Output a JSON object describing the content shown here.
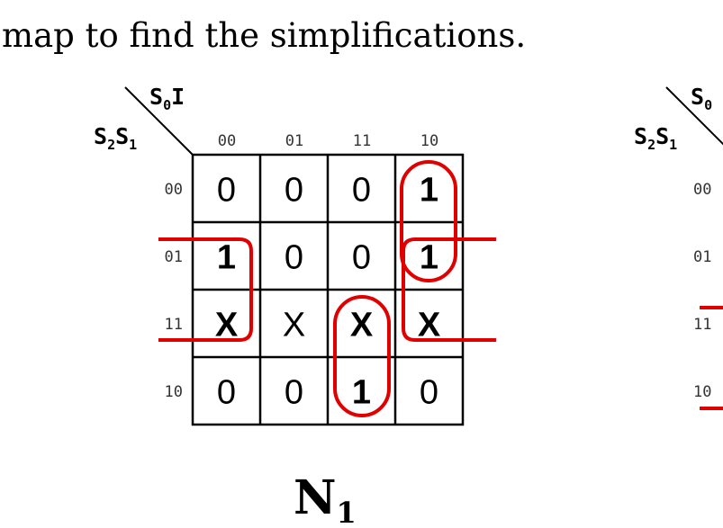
{
  "intro_text": "map to find the simplifications.",
  "kmap_left": {
    "title": "N",
    "title_sub": "1",
    "row_var": "S",
    "row_var_sub1": "2",
    "row_var2": "S",
    "row_var_sub2": "1",
    "col_var": "S",
    "col_var_sub": "0",
    "col_var2": "I",
    "col_labels": [
      "00",
      "01",
      "11",
      "10"
    ],
    "row_labels": [
      "00",
      "01",
      "11",
      "10"
    ],
    "cells": [
      [
        "0",
        "0",
        "0",
        "1"
      ],
      [
        "1",
        "0",
        "0",
        "1"
      ],
      [
        "X",
        "X",
        "X",
        "X"
      ],
      [
        "0",
        "0",
        "1",
        "0"
      ]
    ],
    "bold_cells": [
      [
        false,
        false,
        false,
        true
      ],
      [
        true,
        false,
        false,
        true
      ],
      [
        true,
        false,
        true,
        true
      ],
      [
        false,
        false,
        true,
        false
      ]
    ],
    "group_color": "#e00000"
  },
  "kmap_right_partial": {
    "row_var": "S",
    "row_var_sub1": "2",
    "row_var2": "S",
    "row_var_sub2": "1",
    "col_var": "S",
    "col_var_sub": "0",
    "row_labels": [
      "00",
      "01",
      "11",
      "10"
    ]
  }
}
